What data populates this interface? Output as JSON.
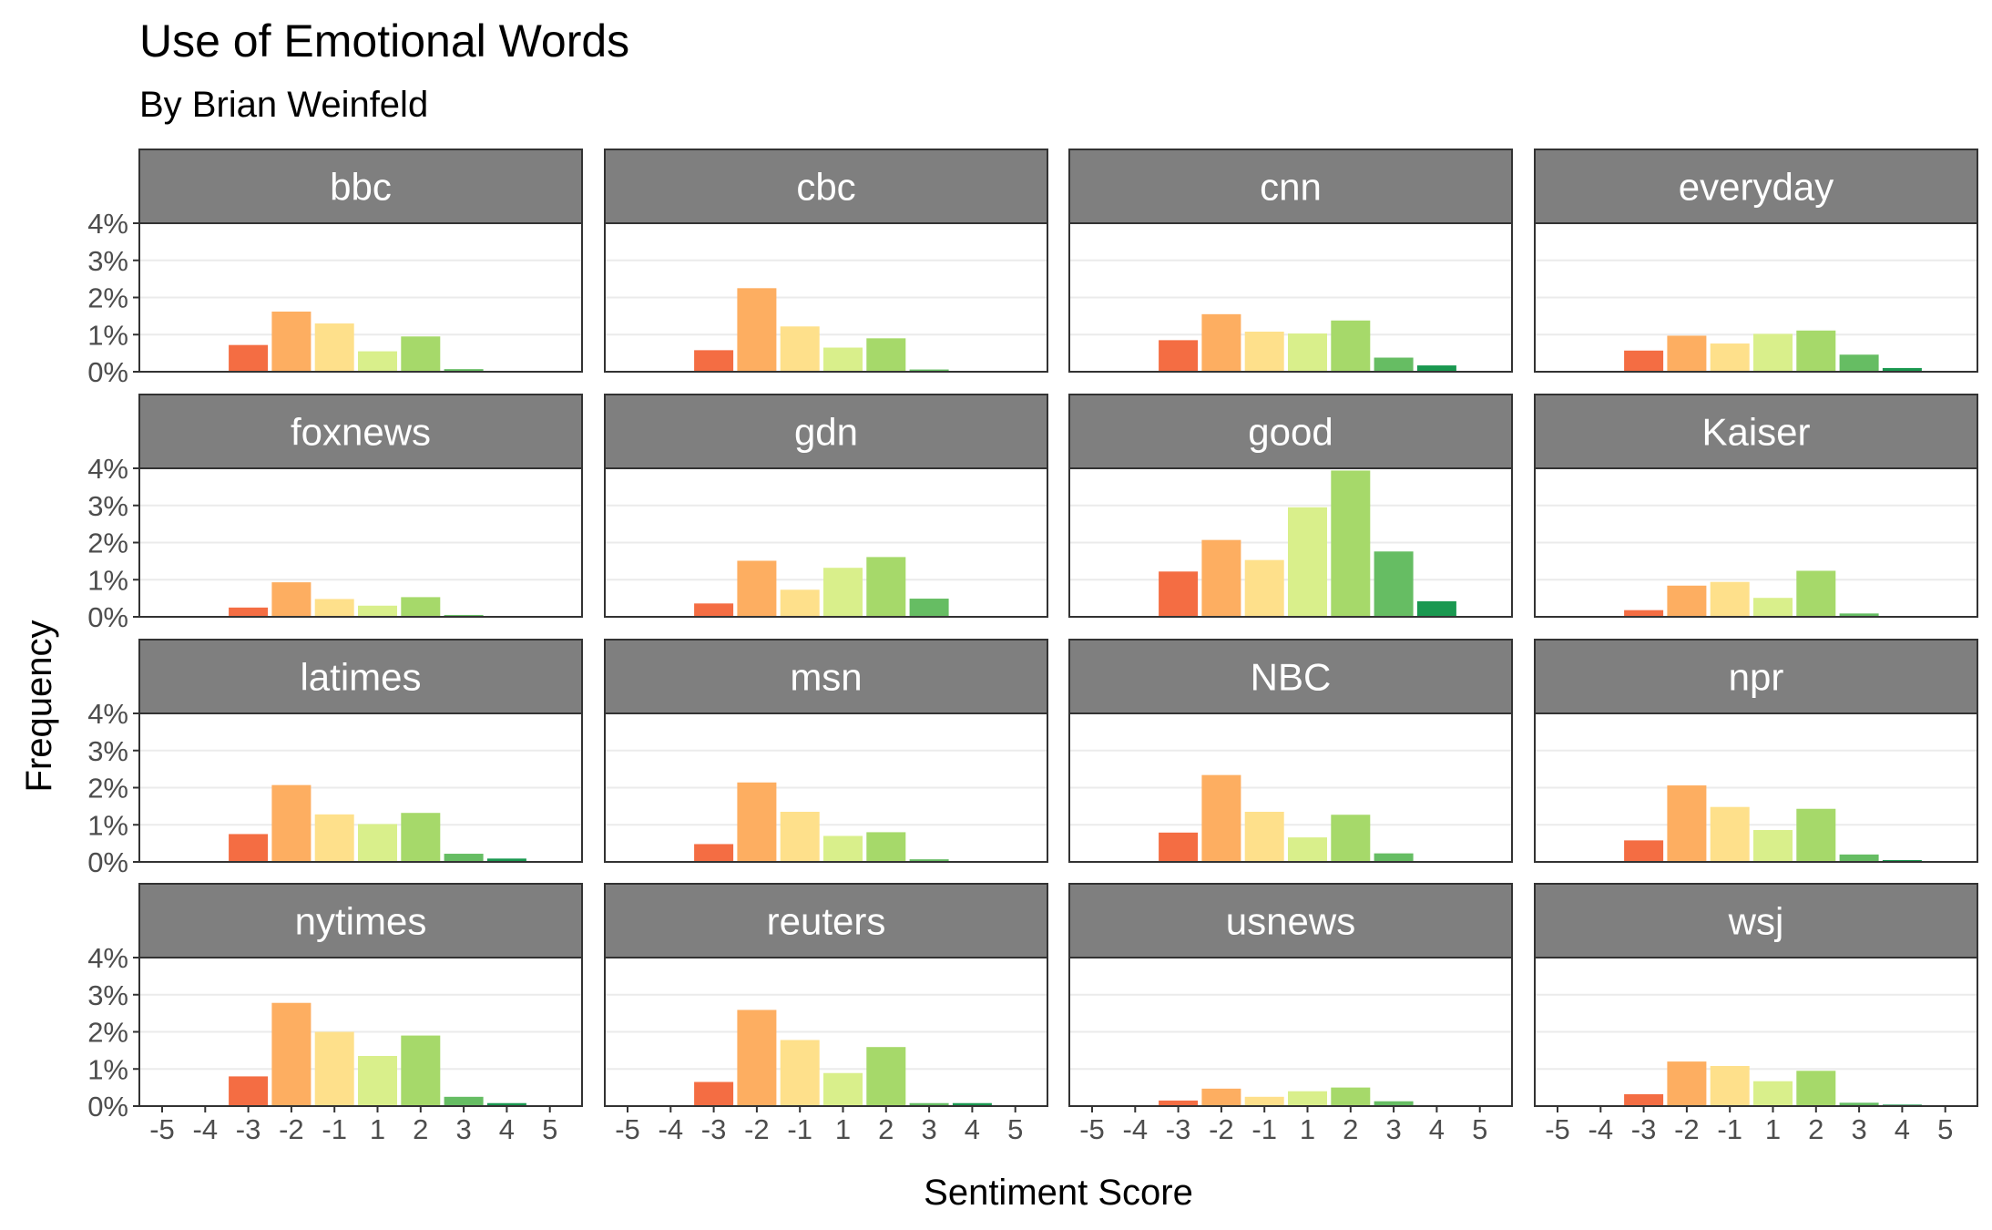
{
  "chart_data": {
    "type": "bar",
    "title": "Use of Emotional Words",
    "subtitle": "By Brian Weinfeld",
    "xlabel": "Sentiment Score",
    "ylabel": "Frequency",
    "x_ticks": [
      "-5",
      "-4",
      "-3",
      "-2",
      "-1",
      "1",
      "2",
      "3",
      "4",
      "5"
    ],
    "y_ticks": [
      "0%",
      "1%",
      "2%",
      "3%",
      "4%"
    ],
    "ylim": [
      0,
      4
    ],
    "grid": true,
    "legend": "none",
    "categories": [
      -5,
      -4,
      -3,
      -2,
      -1,
      1,
      2,
      3,
      4,
      5
    ],
    "colors": {
      "-5": "#d7191c",
      "-4": "#e04a2b",
      "-3": "#f46d43",
      "-2": "#fdae61",
      "-1": "#fee08b",
      "1": "#d9ef8b",
      "2": "#a6d96a",
      "3": "#66bd63",
      "4": "#1a9850",
      "5": "#006837"
    },
    "panels": [
      {
        "name": "bbc",
        "values": [
          0,
          0,
          0.72,
          1.62,
          1.3,
          0.55,
          0.95,
          0.07,
          0,
          0
        ]
      },
      {
        "name": "cbc",
        "values": [
          0,
          0,
          0.58,
          2.25,
          1.22,
          0.65,
          0.9,
          0.06,
          0,
          0
        ]
      },
      {
        "name": "cnn",
        "values": [
          0,
          0,
          0.85,
          1.55,
          1.08,
          1.03,
          1.38,
          0.38,
          0.17,
          0
        ]
      },
      {
        "name": "everyday",
        "values": [
          0,
          0,
          0.57,
          0.97,
          0.76,
          1.02,
          1.11,
          0.46,
          0.1,
          0
        ]
      },
      {
        "name": "foxnews",
        "values": [
          0,
          0,
          0.25,
          0.93,
          0.48,
          0.3,
          0.53,
          0.05,
          0,
          0
        ]
      },
      {
        "name": "gdn",
        "values": [
          0,
          0,
          0.36,
          1.51,
          0.73,
          1.32,
          1.61,
          0.49,
          0,
          0
        ]
      },
      {
        "name": "good",
        "values": [
          0,
          0,
          1.22,
          2.07,
          1.53,
          2.95,
          3.94,
          1.76,
          0.42,
          0
        ]
      },
      {
        "name": "Kaiser",
        "values": [
          0,
          0,
          0.18,
          0.84,
          0.94,
          0.51,
          1.24,
          0.09,
          0,
          0
        ]
      },
      {
        "name": "latimes",
        "values": [
          0,
          0,
          0.75,
          2.07,
          1.28,
          1.02,
          1.32,
          0.22,
          0.09,
          0
        ]
      },
      {
        "name": "msn",
        "values": [
          0,
          0,
          0.48,
          2.14,
          1.35,
          0.7,
          0.8,
          0.07,
          0,
          0
        ]
      },
      {
        "name": "NBC",
        "values": [
          0,
          0,
          0.79,
          2.34,
          1.35,
          0.66,
          1.27,
          0.23,
          0,
          0
        ]
      },
      {
        "name": "npr",
        "values": [
          0,
          0,
          0.58,
          2.06,
          1.48,
          0.86,
          1.43,
          0.2,
          0.05,
          0
        ]
      },
      {
        "name": "nytimes",
        "values": [
          0,
          0,
          0.8,
          2.78,
          2.0,
          1.35,
          1.9,
          0.25,
          0.08,
          0
        ]
      },
      {
        "name": "reuters",
        "values": [
          0,
          0,
          0.65,
          2.59,
          1.78,
          0.89,
          1.59,
          0.08,
          0.08,
          0
        ]
      },
      {
        "name": "usnews",
        "values": [
          0,
          0,
          0.15,
          0.47,
          0.25,
          0.4,
          0.5,
          0.13,
          0,
          0
        ]
      },
      {
        "name": "wsj",
        "values": [
          0,
          0,
          0.32,
          1.2,
          1.08,
          0.67,
          0.95,
          0.09,
          0.04,
          0
        ]
      }
    ]
  }
}
